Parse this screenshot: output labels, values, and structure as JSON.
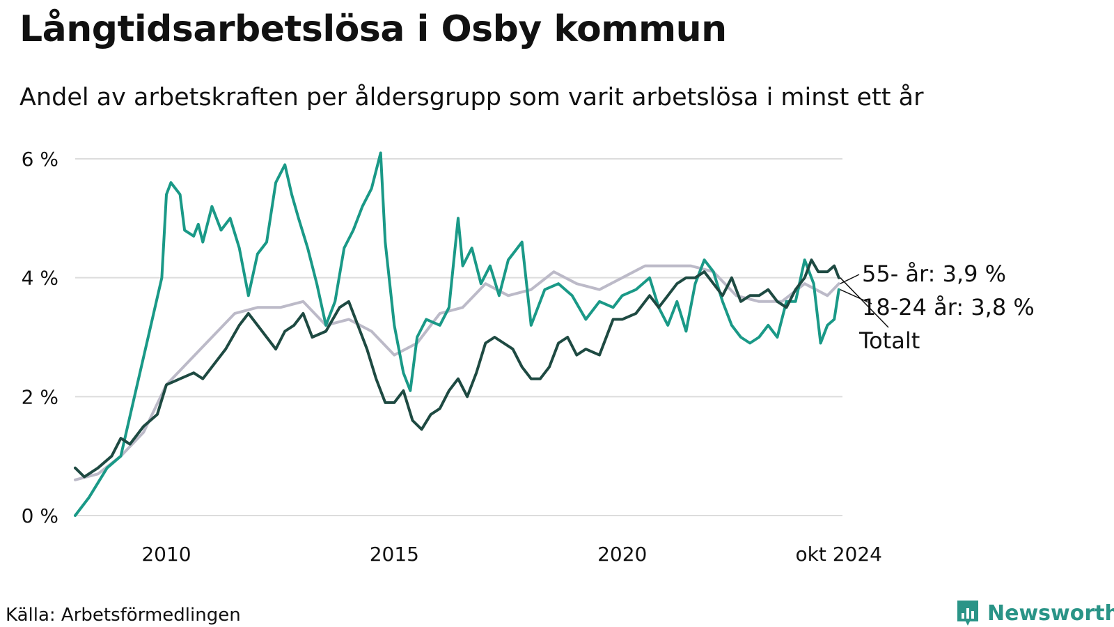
{
  "title": "Långtidsarbetslösa i Osby kommun",
  "subtitle": "Andel av arbetskraften per åldersgrupp som varit arbetslösa i minst ett år",
  "source": "Källa: Arbetsförmedlingen",
  "brand": "Newsworthy",
  "colors": {
    "young": "#1a9987",
    "old": "#bcbac8",
    "total": "#1e4a42",
    "grid": "#dcdcdc",
    "brand": "#2a9487",
    "text": "#111111"
  },
  "chart_data": {
    "type": "line",
    "title": "Långtidsarbetslösa i Osby kommun",
    "subtitle": "Andel av arbetskraften per åldersgrupp som varit arbetslösa i minst ett år",
    "x_start": "2008-01",
    "x_end": "2024-10",
    "xlim": [
      2008.0,
      2024.83
    ],
    "ylim": [
      0,
      6
    ],
    "x_ticks": [
      {
        "value": 2010.0,
        "label": "2010"
      },
      {
        "value": 2015.0,
        "label": "2015"
      },
      {
        "value": 2020.0,
        "label": "2020"
      },
      {
        "value": 2024.75,
        "label": "okt 2024"
      }
    ],
    "y_ticks": [
      {
        "value": 0,
        "label": "0 %"
      },
      {
        "value": 2,
        "label": "2 %"
      },
      {
        "value": 4,
        "label": "4 %"
      },
      {
        "value": 6,
        "label": "6 %"
      }
    ],
    "grid": true,
    "direct_labels": [
      {
        "series": "55-",
        "text": "55- år: 3,9 %"
      },
      {
        "series": "18-24",
        "text": "18-24 år: 3,8 %"
      },
      {
        "series": "Totalt",
        "text": "Totalt"
      }
    ],
    "series": [
      {
        "name": "55- år",
        "key": "55-",
        "color": "#bcbac8",
        "points": [
          [
            2008.0,
            0.6
          ],
          [
            2008.5,
            0.7
          ],
          [
            2009.0,
            1.0
          ],
          [
            2009.5,
            1.4
          ],
          [
            2010.0,
            2.2
          ],
          [
            2010.5,
            2.6
          ],
          [
            2011.0,
            3.0
          ],
          [
            2011.5,
            3.4
          ],
          [
            2012.0,
            3.5
          ],
          [
            2012.5,
            3.5
          ],
          [
            2013.0,
            3.6
          ],
          [
            2013.5,
            3.2
          ],
          [
            2014.0,
            3.3
          ],
          [
            2014.5,
            3.1
          ],
          [
            2015.0,
            2.7
          ],
          [
            2015.5,
            2.9
          ],
          [
            2016.0,
            3.4
          ],
          [
            2016.5,
            3.5
          ],
          [
            2017.0,
            3.9
          ],
          [
            2017.5,
            3.7
          ],
          [
            2018.0,
            3.8
          ],
          [
            2018.5,
            4.1
          ],
          [
            2019.0,
            3.9
          ],
          [
            2019.5,
            3.8
          ],
          [
            2020.0,
            4.0
          ],
          [
            2020.5,
            4.2
          ],
          [
            2021.0,
            4.2
          ],
          [
            2021.5,
            4.2
          ],
          [
            2022.0,
            4.1
          ],
          [
            2022.5,
            3.7
          ],
          [
            2023.0,
            3.6
          ],
          [
            2023.5,
            3.6
          ],
          [
            2024.0,
            3.9
          ],
          [
            2024.5,
            3.7
          ],
          [
            2024.75,
            3.9
          ]
        ]
      },
      {
        "name": "18-24 år",
        "key": "18-24",
        "color": "#1a9987",
        "points": [
          [
            2008.0,
            0.0
          ],
          [
            2008.3,
            0.3
          ],
          [
            2008.7,
            0.8
          ],
          [
            2009.0,
            1.0
          ],
          [
            2009.3,
            2.0
          ],
          [
            2009.6,
            3.0
          ],
          [
            2009.9,
            4.0
          ],
          [
            2010.0,
            5.4
          ],
          [
            2010.1,
            5.6
          ],
          [
            2010.3,
            5.4
          ],
          [
            2010.4,
            4.8
          ],
          [
            2010.6,
            4.7
          ],
          [
            2010.7,
            4.9
          ],
          [
            2010.8,
            4.6
          ],
          [
            2011.0,
            5.2
          ],
          [
            2011.2,
            4.8
          ],
          [
            2011.4,
            5.0
          ],
          [
            2011.6,
            4.5
          ],
          [
            2011.8,
            3.7
          ],
          [
            2012.0,
            4.4
          ],
          [
            2012.2,
            4.6
          ],
          [
            2012.4,
            5.6
          ],
          [
            2012.6,
            5.9
          ],
          [
            2012.75,
            5.4
          ],
          [
            2012.9,
            5.0
          ],
          [
            2013.1,
            4.5
          ],
          [
            2013.3,
            3.9
          ],
          [
            2013.5,
            3.2
          ],
          [
            2013.7,
            3.6
          ],
          [
            2013.9,
            4.5
          ],
          [
            2014.1,
            4.8
          ],
          [
            2014.3,
            5.2
          ],
          [
            2014.5,
            5.5
          ],
          [
            2014.7,
            6.1
          ],
          [
            2014.8,
            4.6
          ],
          [
            2015.0,
            3.2
          ],
          [
            2015.2,
            2.4
          ],
          [
            2015.35,
            2.1
          ],
          [
            2015.5,
            3.0
          ],
          [
            2015.7,
            3.3
          ],
          [
            2016.0,
            3.2
          ],
          [
            2016.2,
            3.5
          ],
          [
            2016.4,
            5.0
          ],
          [
            2016.5,
            4.2
          ],
          [
            2016.7,
            4.5
          ],
          [
            2016.9,
            3.9
          ],
          [
            2017.1,
            4.2
          ],
          [
            2017.3,
            3.7
          ],
          [
            2017.5,
            4.3
          ],
          [
            2017.8,
            4.6
          ],
          [
            2018.0,
            3.2
          ],
          [
            2018.3,
            3.8
          ],
          [
            2018.6,
            3.9
          ],
          [
            2018.9,
            3.7
          ],
          [
            2019.2,
            3.3
          ],
          [
            2019.5,
            3.6
          ],
          [
            2019.8,
            3.5
          ],
          [
            2020.0,
            3.7
          ],
          [
            2020.3,
            3.8
          ],
          [
            2020.6,
            4.0
          ],
          [
            2020.8,
            3.5
          ],
          [
            2021.0,
            3.2
          ],
          [
            2021.2,
            3.6
          ],
          [
            2021.4,
            3.1
          ],
          [
            2021.6,
            3.9
          ],
          [
            2021.8,
            4.3
          ],
          [
            2022.0,
            4.1
          ],
          [
            2022.2,
            3.6
          ],
          [
            2022.4,
            3.2
          ],
          [
            2022.6,
            3.0
          ],
          [
            2022.8,
            2.9
          ],
          [
            2023.0,
            3.0
          ],
          [
            2023.2,
            3.2
          ],
          [
            2023.4,
            3.0
          ],
          [
            2023.6,
            3.6
          ],
          [
            2023.8,
            3.6
          ],
          [
            2024.0,
            4.3
          ],
          [
            2024.2,
            3.9
          ],
          [
            2024.35,
            2.9
          ],
          [
            2024.5,
            3.2
          ],
          [
            2024.65,
            3.3
          ],
          [
            2024.75,
            3.8
          ]
        ]
      },
      {
        "name": "Totalt",
        "key": "Totalt",
        "color": "#1e4a42",
        "points": [
          [
            2008.0,
            0.8
          ],
          [
            2008.2,
            0.65
          ],
          [
            2008.5,
            0.8
          ],
          [
            2008.8,
            1.0
          ],
          [
            2009.0,
            1.3
          ],
          [
            2009.2,
            1.2
          ],
          [
            2009.5,
            1.5
          ],
          [
            2009.8,
            1.7
          ],
          [
            2010.0,
            2.2
          ],
          [
            2010.3,
            2.3
          ],
          [
            2010.6,
            2.4
          ],
          [
            2010.8,
            2.3
          ],
          [
            2011.0,
            2.5
          ],
          [
            2011.3,
            2.8
          ],
          [
            2011.6,
            3.2
          ],
          [
            2011.8,
            3.4
          ],
          [
            2012.0,
            3.2
          ],
          [
            2012.2,
            3.0
          ],
          [
            2012.4,
            2.8
          ],
          [
            2012.6,
            3.1
          ],
          [
            2012.8,
            3.2
          ],
          [
            2013.0,
            3.4
          ],
          [
            2013.2,
            3.0
          ],
          [
            2013.5,
            3.1
          ],
          [
            2013.8,
            3.5
          ],
          [
            2014.0,
            3.6
          ],
          [
            2014.2,
            3.2
          ],
          [
            2014.4,
            2.8
          ],
          [
            2014.6,
            2.3
          ],
          [
            2014.8,
            1.9
          ],
          [
            2015.0,
            1.9
          ],
          [
            2015.2,
            2.1
          ],
          [
            2015.4,
            1.6
          ],
          [
            2015.6,
            1.45
          ],
          [
            2015.8,
            1.7
          ],
          [
            2016.0,
            1.8
          ],
          [
            2016.2,
            2.1
          ],
          [
            2016.4,
            2.3
          ],
          [
            2016.6,
            2.0
          ],
          [
            2016.8,
            2.4
          ],
          [
            2017.0,
            2.9
          ],
          [
            2017.2,
            3.0
          ],
          [
            2017.4,
            2.9
          ],
          [
            2017.6,
            2.8
          ],
          [
            2017.8,
            2.5
          ],
          [
            2018.0,
            2.3
          ],
          [
            2018.2,
            2.3
          ],
          [
            2018.4,
            2.5
          ],
          [
            2018.6,
            2.9
          ],
          [
            2018.8,
            3.0
          ],
          [
            2019.0,
            2.7
          ],
          [
            2019.2,
            2.8
          ],
          [
            2019.5,
            2.7
          ],
          [
            2019.8,
            3.3
          ],
          [
            2020.0,
            3.3
          ],
          [
            2020.3,
            3.4
          ],
          [
            2020.6,
            3.7
          ],
          [
            2020.8,
            3.5
          ],
          [
            2021.0,
            3.7
          ],
          [
            2021.2,
            3.9
          ],
          [
            2021.4,
            4.0
          ],
          [
            2021.6,
            4.0
          ],
          [
            2021.8,
            4.1
          ],
          [
            2022.0,
            3.9
          ],
          [
            2022.2,
            3.7
          ],
          [
            2022.4,
            4.0
          ],
          [
            2022.6,
            3.6
          ],
          [
            2022.8,
            3.7
          ],
          [
            2023.0,
            3.7
          ],
          [
            2023.2,
            3.8
          ],
          [
            2023.4,
            3.6
          ],
          [
            2023.6,
            3.5
          ],
          [
            2023.8,
            3.8
          ],
          [
            2024.0,
            4.0
          ],
          [
            2024.15,
            4.3
          ],
          [
            2024.3,
            4.1
          ],
          [
            2024.5,
            4.1
          ],
          [
            2024.65,
            4.2
          ],
          [
            2024.75,
            4.0
          ]
        ]
      }
    ]
  }
}
